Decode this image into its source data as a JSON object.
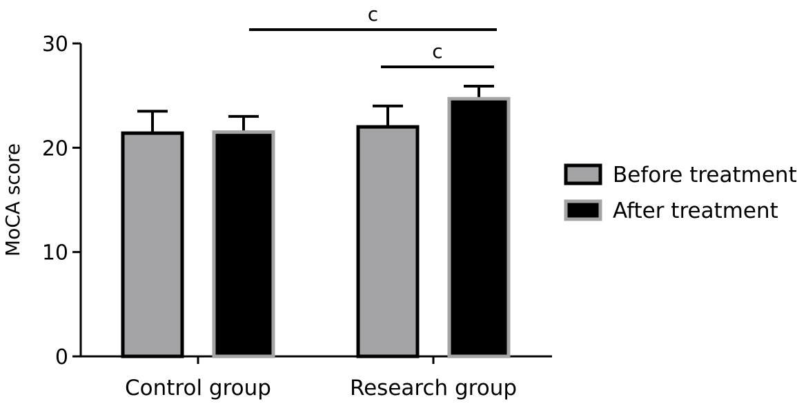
{
  "chart_data": {
    "type": "bar",
    "ylabel": "MoCA score",
    "xlabel": "",
    "ylim": [
      0,
      30
    ],
    "yticks": [
      0,
      10,
      20,
      30
    ],
    "categories": [
      "Control group",
      "Research group"
    ],
    "series": [
      {
        "name": "Before treatment",
        "values": [
          21.4,
          22.0
        ],
        "errors": [
          2.1,
          2.0
        ],
        "fill": "#a4a4a6",
        "edge": "#000000"
      },
      {
        "name": "After treatment",
        "values": [
          21.5,
          24.7
        ],
        "errors": [
          1.5,
          1.2
        ],
        "fill": "#000000",
        "edge": "#a4a4a6"
      }
    ],
    "annotations": [
      {
        "text": "c",
        "from": "Control group / After treatment",
        "to": "Research group / After treatment"
      },
      {
        "text": "c",
        "from": "Research group / Before treatment",
        "to": "Research group / After treatment"
      }
    ],
    "legend_position": "right",
    "grid": false
  }
}
